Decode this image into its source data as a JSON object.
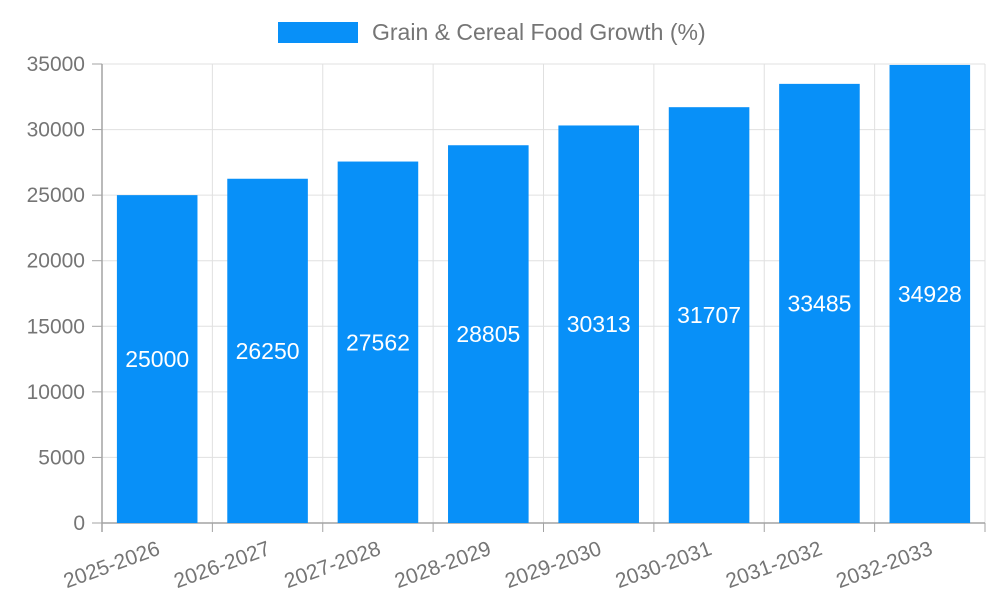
{
  "chart_data": {
    "type": "bar",
    "title": "Grain & Cereal Food Growth (%)",
    "legend": {
      "label": "Grain & Cereal Food Growth (%)",
      "position": "top"
    },
    "categories": [
      "2025-2026",
      "2026-2027",
      "2027-2028",
      "2028-2029",
      "2029-2030",
      "2030-2031",
      "2031-2032",
      "2032-2033"
    ],
    "series": [
      {
        "name": "Grain & Cereal Food Growth (%)",
        "values": [
          25000,
          26250,
          27562,
          28805,
          30313,
          31707,
          33485,
          34928
        ]
      }
    ],
    "show_value_labels": true,
    "xlabel": "",
    "ylabel": "",
    "ylim": [
      0,
      35000
    ],
    "y_ticks": [
      0,
      5000,
      10000,
      15000,
      20000,
      25000,
      30000,
      35000
    ],
    "grid": true,
    "x_label_rotation_deg": -20,
    "colors": {
      "bar": "#0890f8",
      "grid": "#e0e0e0",
      "axis": "#a3a3a3",
      "text": "#757575",
      "value_label": "#ffffff",
      "background": "#ffffff"
    }
  }
}
